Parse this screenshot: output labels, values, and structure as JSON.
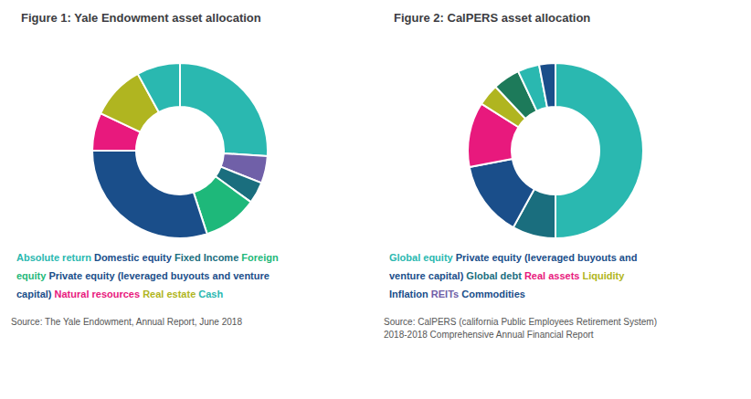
{
  "chart_data": [
    {
      "type": "pie",
      "title": "Figure 1: Yale Endowment asset allocation",
      "values": [
        26,
        5,
        4,
        10,
        30,
        7,
        10,
        8
      ],
      "colors": [
        "#2ab8b0",
        "#7060a8",
        "#1a6e7e",
        "#1eb87a",
        "#1a4e8a",
        "#e8197d",
        "#b0b520",
        "#2ab8b0"
      ],
      "annotations": [
        [
          {
            "text": "Absolute return ",
            "color": "#2ab8b0"
          },
          {
            "text": "Domestic equity ",
            "color": "#1a4e8a"
          },
          {
            "text": "Fixed Income ",
            "color": "#1a6e7e"
          },
          {
            "text": "Foreign",
            "color": "#1eb87a"
          }
        ],
        [
          {
            "text": "equity ",
            "color": "#1eb87a"
          },
          {
            "text": "Private equity (leveraged buyouts and venture",
            "color": "#1a4e8a"
          }
        ],
        [
          {
            "text": "capital) ",
            "color": "#1a4e8a"
          },
          {
            "text": "Natural resources ",
            "color": "#e8197d"
          },
          {
            "text": "Real estate ",
            "color": "#b0b520"
          },
          {
            "text": "Cash",
            "color": "#2ab8b0"
          }
        ]
      ],
      "source": "Source: The Yale Endowment, Annual Report, June 2018"
    },
    {
      "type": "pie",
      "title": "Figure 2: CalPERS asset allocation",
      "values": [
        50,
        8,
        14,
        12,
        4,
        5,
        4,
        3
      ],
      "colors": [
        "#2ab8b0",
        "#1a6e7e",
        "#1a4e8a",
        "#e8197d",
        "#b0b520",
        "#1d7a5a",
        "#2ab8b0",
        "#1a4e8a"
      ],
      "annotations": [
        [
          {
            "text": "Global equity ",
            "color": "#2ab8b0"
          },
          {
            "text": "Private equity (leveraged buyouts and",
            "color": "#1a4e8a"
          }
        ],
        [
          {
            "text": "venture capital) ",
            "color": "#1a4e8a"
          },
          {
            "text": "Global debt ",
            "color": "#1a6e7e"
          },
          {
            "text": "Real assets ",
            "color": "#e8197d"
          },
          {
            "text": "Liquidity",
            "color": "#b0b520"
          }
        ],
        [
          {
            "text": "Inflation ",
            "color": "#1a4e8a"
          },
          {
            "text": "REITs ",
            "color": "#7060a8"
          },
          {
            "text": "Commodities",
            "color": "#1a4e8a"
          }
        ]
      ],
      "source": "Source: CalPERS (california Public Employees Retirement System)\n2018-2018 Comprehensive Annual Financial Report"
    }
  ]
}
